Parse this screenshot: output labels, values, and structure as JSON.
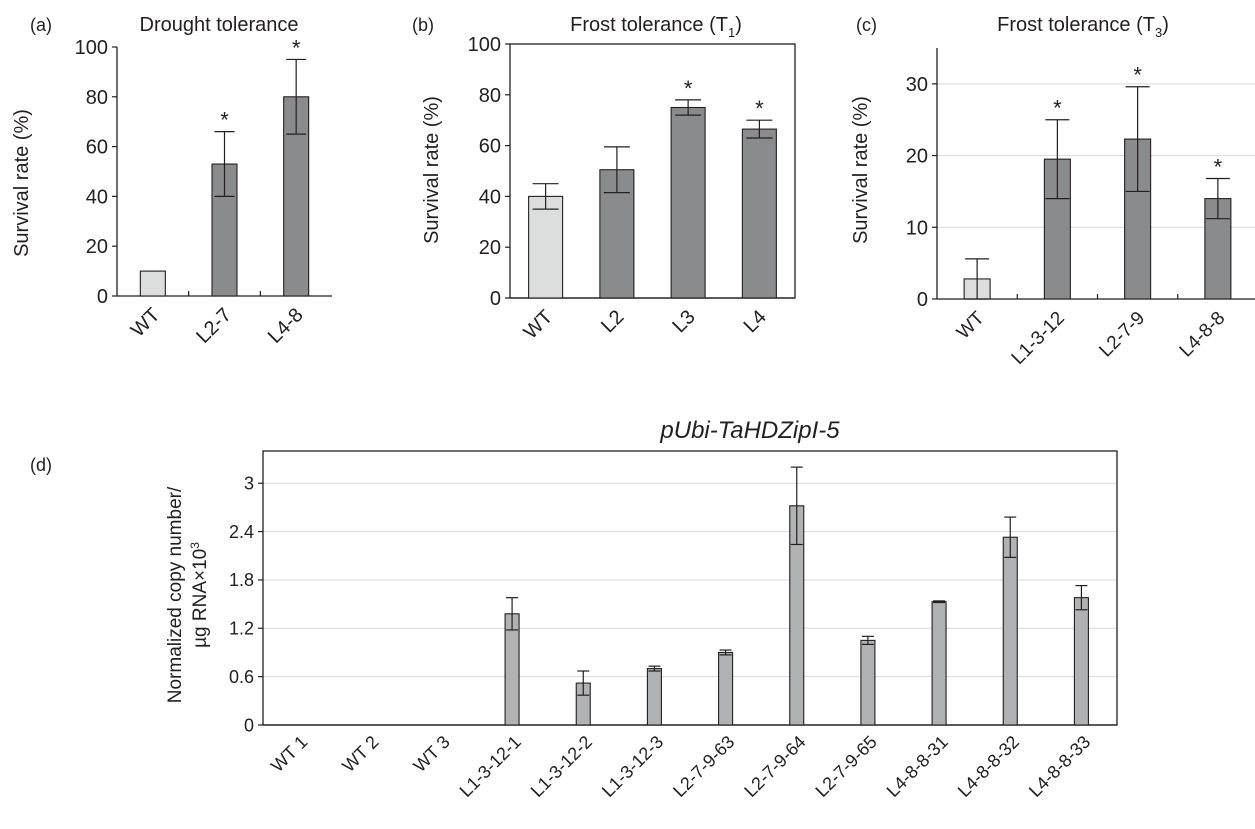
{
  "chart_data": [
    {
      "panel": "(a)",
      "type": "bar",
      "title": "Drought tolerance",
      "ylabel": "Survival rate (%)",
      "categories": [
        "WT",
        "L2-7",
        "L4-8"
      ],
      "values": [
        10,
        53,
        80
      ],
      "errors": [
        0,
        13,
        15
      ],
      "significant": [
        false,
        true,
        true
      ],
      "ylim": [
        0,
        100
      ],
      "yticks": [
        0,
        20,
        40,
        60,
        80,
        100
      ]
    },
    {
      "panel": "(b)",
      "type": "bar",
      "title_main": "Frost tolerance (T",
      "title_sub": "1",
      "title_end": ")",
      "ylabel": "Survival rate (%)",
      "categories": [
        "WT",
        "L2",
        "L3",
        "L4"
      ],
      "values": [
        40,
        50.5,
        75,
        66.5
      ],
      "errors": [
        5,
        9,
        3,
        3.5
      ],
      "significant": [
        false,
        false,
        true,
        true
      ],
      "ylim": [
        0,
        100
      ],
      "yticks": [
        0,
        20,
        40,
        60,
        80,
        100
      ]
    },
    {
      "panel": "(c)",
      "type": "bar",
      "title_main": "Frost tolerance (T",
      "title_sub": "3",
      "title_end": ")",
      "ylabel": "Survival rate (%)",
      "categories": [
        "WT",
        "L1-3-12",
        "L2-7-9",
        "L4-8-8"
      ],
      "values": [
        2.8,
        19.5,
        22.3,
        14
      ],
      "errors": [
        2.8,
        5.5,
        7.3,
        2.8
      ],
      "significant": [
        false,
        true,
        true,
        true
      ],
      "ylim": [
        0,
        35
      ],
      "yticks": [
        0,
        10,
        20,
        30
      ]
    },
    {
      "panel": "(d)",
      "type": "bar",
      "title": "pUbi-TaHDZipI-5",
      "ylabel_line1": "Normalized copy number/",
      "ylabel_line2": "µg RNA×10",
      "ylabel_sup": "3",
      "categories": [
        "WT 1",
        "WT 2",
        "WT 3",
        "L1-3-12-1",
        "L1-3-12-2",
        "L1-3-12-3",
        "L2-7-9-63",
        "L2-7-9-64",
        "L2-7-9-65",
        "L4-8-8-31",
        "L4-8-8-32",
        "L4-8-8-33"
      ],
      "values": [
        0,
        0,
        0,
        1.38,
        0.52,
        0.7,
        0.9,
        2.72,
        1.05,
        1.53,
        2.33,
        1.58
      ],
      "errors": [
        0,
        0,
        0,
        0.2,
        0.15,
        0.03,
        0.03,
        0.48,
        0.05,
        0.01,
        0.25,
        0.15
      ],
      "ylim": [
        0,
        3.4
      ],
      "yticks": [
        "0",
        "0.6",
        "1.2",
        "1.8",
        "2.4",
        "3"
      ]
    }
  ],
  "significance_mark": "*",
  "colors": {
    "control": "#dcdddd",
    "transgenic": "#8a8b8d",
    "transgenic_d": "#b1b2b4",
    "ink": "#231f20",
    "grid": "#d9d9d9"
  }
}
